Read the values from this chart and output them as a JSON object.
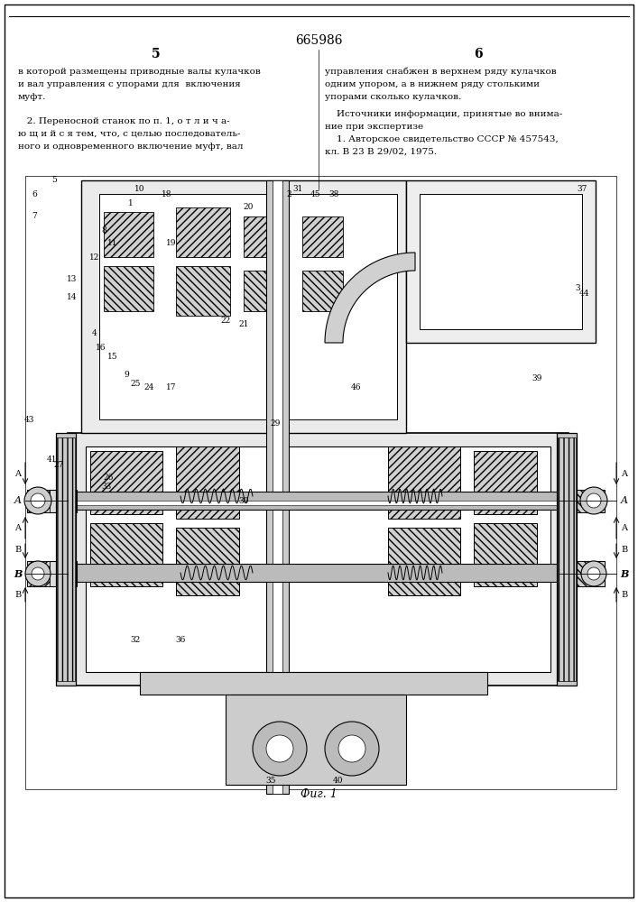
{
  "patent_number": "665986",
  "page_left": "5",
  "page_right": "6",
  "text_col1_lines": [
    "в которой размещены приводные валы кулачков",
    "и вал управления с упорами для  включения",
    "муфт."
  ],
  "text_col2_lines": [
    "управления снабжен в верхнем ряду кулачков",
    "одним упором, а в нижнем ряду столькими",
    "упорами сколько кулачков."
  ],
  "text_col2_sources_header": "    Источники информации, принятые во внима-",
  "text_col2_sources2": "ние при экспертизе",
  "text_col2_source1": "    1. Авторское свидетельство СССР № 457543,",
  "text_col2_source2": "кл. В 23 В 29/02, 1975.",
  "claim2_lines": [
    "   2. Переносной станок по п. 1, о т л и ч а-",
    "ю щ и й с я тем, что, с целью последователь-",
    "ного и одновременного включение муфт, вал"
  ],
  "fig_caption": "Фиг. 1",
  "background_color": "#ffffff",
  "line_color": "#000000",
  "text_color": "#000000",
  "drawing_bg": "#f5f5f5"
}
